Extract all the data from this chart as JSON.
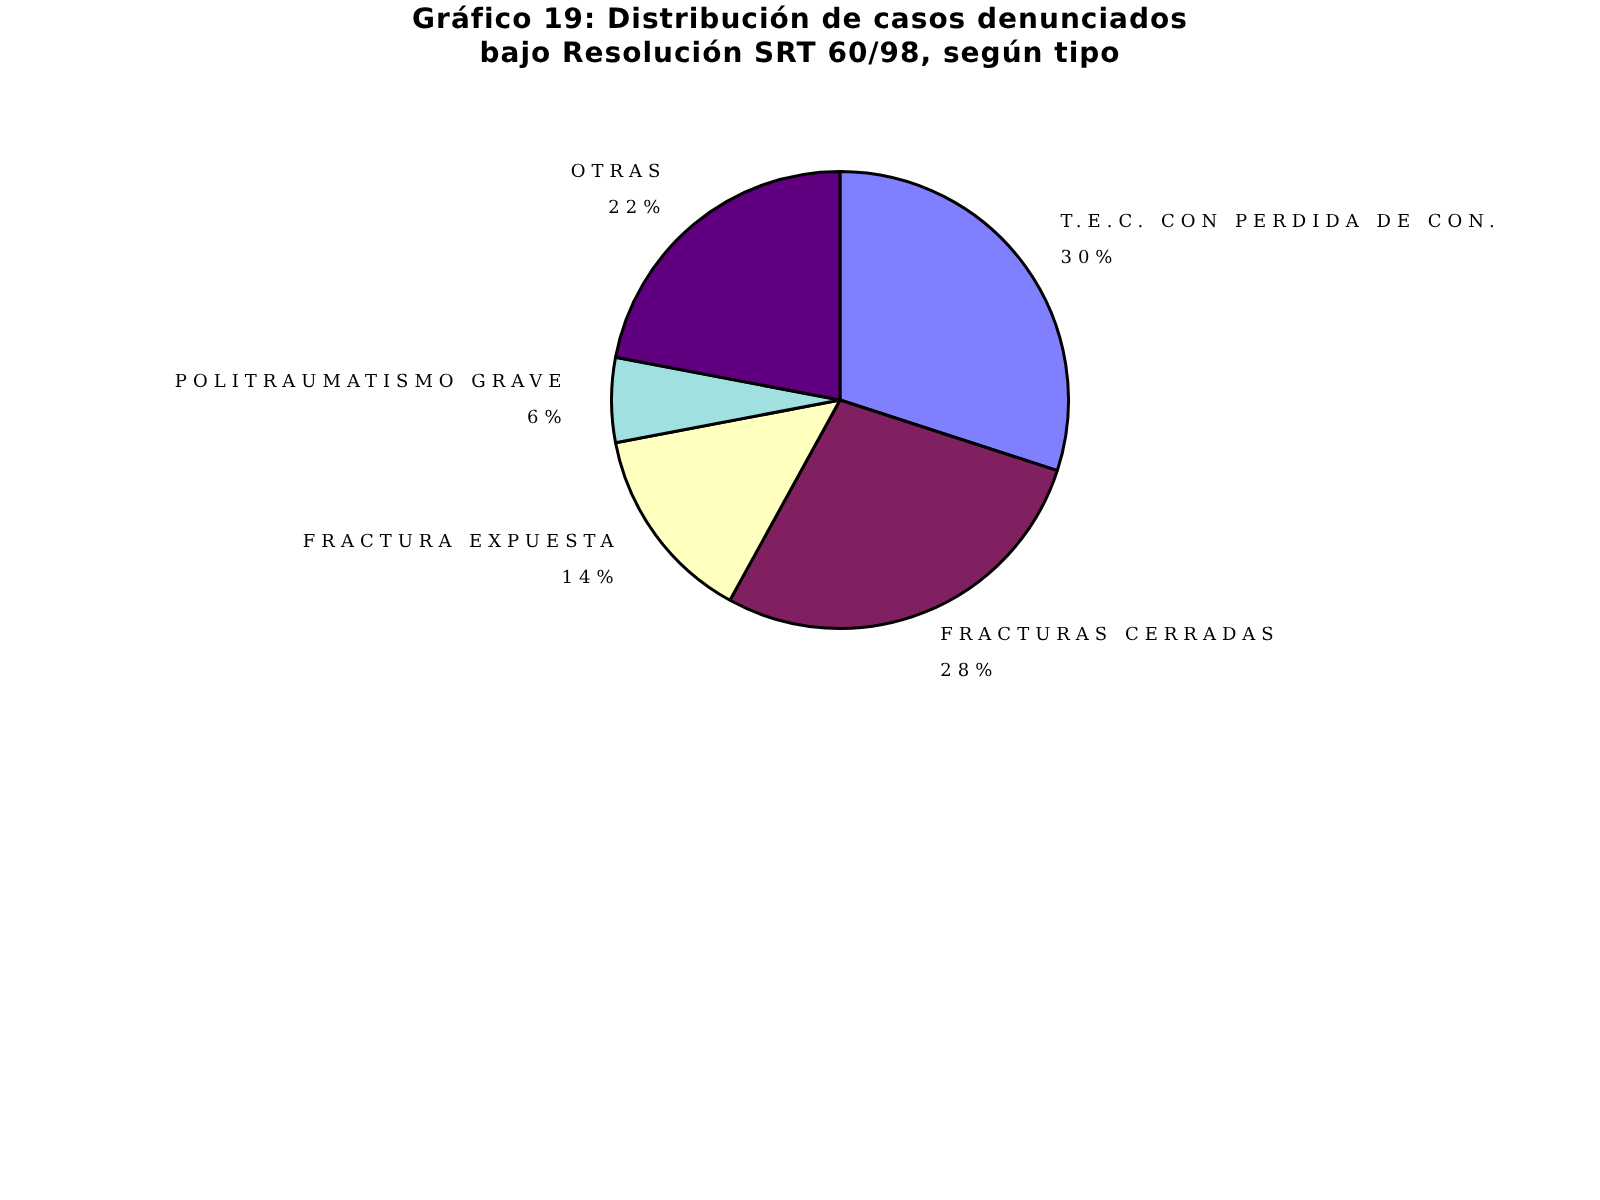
{
  "chart_data": {
    "type": "pie",
    "title": "Gráfico 19: Distribución de casos denunciados bajo Resolución SRT 60/98, según tipo",
    "categories": [
      "T.E.C. CON PERDIDA DE CON.",
      "FRACTURAS CERRADAS",
      "FRACTURA EXPUESTA",
      "POLITRAUMATISMO GRAVE",
      "OTRAS"
    ],
    "values": [
      30,
      28,
      14,
      6,
      22
    ],
    "value_labels": [
      "30%",
      "28%",
      "14%",
      "6%",
      "22%"
    ],
    "colors": [
      "#8080ff",
      "#802060",
      "#ffffc0",
      "#a0e0e0",
      "#600080"
    ],
    "legend": false
  }
}
